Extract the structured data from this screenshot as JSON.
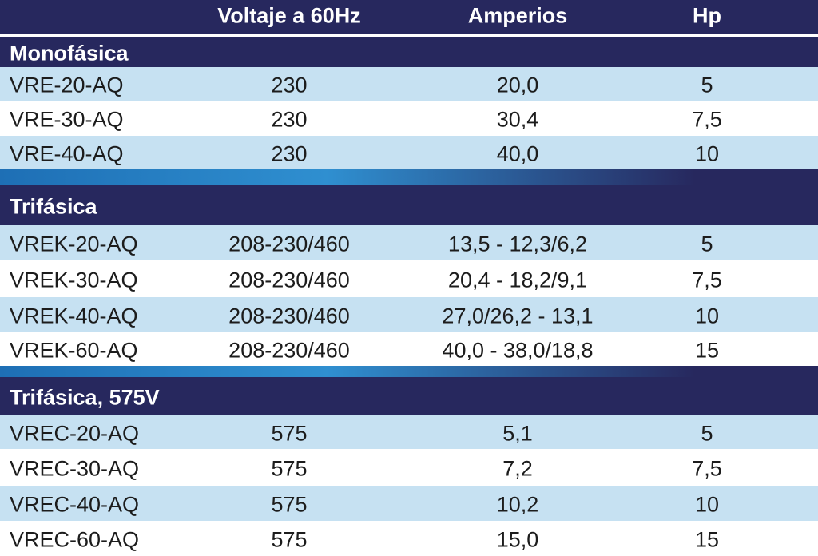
{
  "header": {
    "columns": [
      "Voltaje a 60Hz",
      "Amperios",
      "Hp"
    ]
  },
  "sections": [
    {
      "title": "Monofásica",
      "rows": [
        [
          "VRE-20-AQ",
          "230",
          "20,0",
          "5"
        ],
        [
          "VRE-30-AQ",
          "230",
          "30,4",
          "7,5"
        ],
        [
          "VRE-40-AQ",
          "230",
          "40,0",
          "10"
        ]
      ]
    },
    {
      "title": "Trifásica",
      "rows": [
        [
          "VREK-20-AQ",
          "208-230/460",
          "13,5 - 12,3/6,2",
          "5"
        ],
        [
          "VREK-30-AQ",
          "208-230/460",
          "20,4 - 18,2/9,1",
          "7,5"
        ],
        [
          "VREK-40-AQ",
          "208-230/460",
          "27,0/26,2 - 13,1",
          "10"
        ],
        [
          "VREK-60-AQ",
          "208-230/460",
          "40,0 - 38,0/18,8",
          "15"
        ]
      ]
    },
    {
      "title": "Trifásica, 575V",
      "rows": [
        [
          "VREC-20-AQ",
          "575",
          "5,1",
          "5"
        ],
        [
          "VREC-30-AQ",
          "575",
          "7,2",
          "7,5"
        ],
        [
          "VREC-40-AQ",
          "575",
          "10,2",
          "10"
        ],
        [
          "VREC-60-AQ",
          "575",
          "15,0",
          "15"
        ]
      ]
    }
  ]
}
